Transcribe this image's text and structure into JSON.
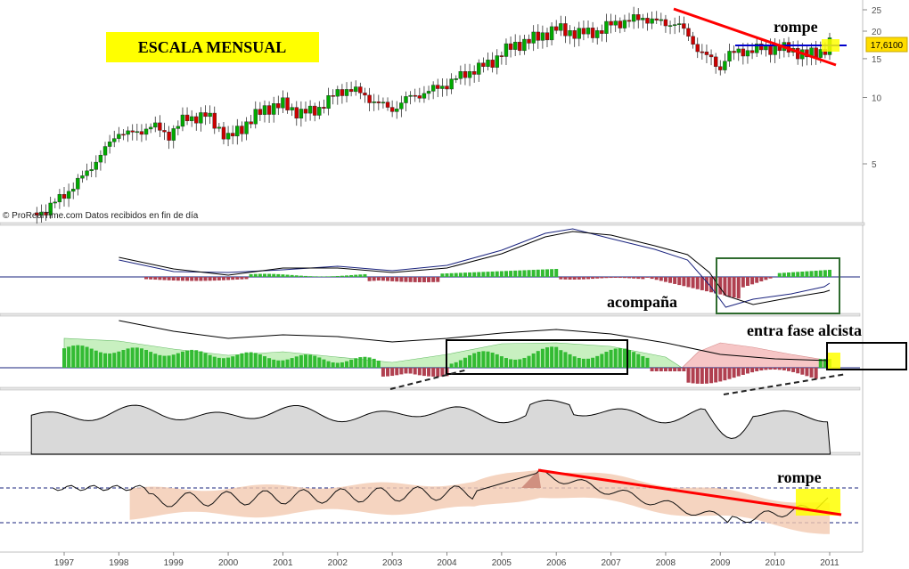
{
  "title_banner": "ESCALA MENSUAL",
  "credit": "© ProRealTime.com  Datos recibidos en fin de día",
  "current_price": "17,6100",
  "annotations": {
    "rompe_top": "rompe",
    "acompana": "acompaña",
    "entra_fase": "entra fase alcista",
    "rompe_bottom": "rompe"
  },
  "colors": {
    "up_candle": "#00aa00",
    "down_candle": "#cc0000",
    "trend_red": "#ff0000",
    "level_blue": "#0000cc",
    "highlight_yellow": "#ffff00",
    "macd_green": "#33bb33",
    "macd_red": "#b04050",
    "panel_line": "#1a237e",
    "box_green": "#2e6b2e",
    "fill_gray": "#d9d9d9",
    "band_fill": "#f2c9b0"
  },
  "chart_data": {
    "type": "line",
    "x_ticks": [
      "1997",
      "1998",
      "1999",
      "2000",
      "2001",
      "2002",
      "2003",
      "2004",
      "2005",
      "2006",
      "2007",
      "2008",
      "2009",
      "2010",
      "2011"
    ],
    "price_axis": {
      "scale": "log",
      "ticks": [
        "25",
        "20",
        "15",
        "10",
        "5"
      ],
      "ylim": [
        2.5,
        27
      ]
    },
    "price_series": {
      "x": [
        1996.6,
        1997.0,
        1997.4,
        1997.8,
        1998.0,
        1998.3,
        1998.6,
        1998.9,
        1999.2,
        1999.6,
        2000.0,
        2000.3,
        2000.7,
        2001.0,
        2001.3,
        2001.6,
        2002.0,
        2002.2,
        2002.4,
        2002.7,
        2003.0,
        2003.3,
        2003.6,
        2004.0,
        2004.2,
        2004.5,
        2004.8,
        2005.0,
        2005.3,
        2005.6,
        2005.8,
        2006.0,
        2006.4,
        2006.8,
        2007.0,
        2007.3,
        2007.6,
        2008.0,
        2008.2,
        2008.4,
        2008.6,
        2008.8,
        2009.0,
        2009.1,
        2009.3,
        2009.6,
        2010.0,
        2010.3,
        2010.6,
        2010.9,
        2011.0
      ],
      "close": [
        3.0,
        3.6,
        4.5,
        6.0,
        7.0,
        6.8,
        7.5,
        6.7,
        8.0,
        8.3,
        6.5,
        7.5,
        9.0,
        9.3,
        8.5,
        8.7,
        10.5,
        11.0,
        10.5,
        9.5,
        8.8,
        10.0,
        10.5,
        11.5,
        12.3,
        13.4,
        14.3,
        16.0,
        17.5,
        18.5,
        19.5,
        20.5,
        19.5,
        20.0,
        21.5,
        22.3,
        23.0,
        21.5,
        22.0,
        19.0,
        16.5,
        15.0,
        13.5,
        15.5,
        16.0,
        16.5,
        16.8,
        16.5,
        15.5,
        16.5,
        17.61
      ]
    },
    "trendlines": [
      {
        "name": "rompe",
        "panel": "price",
        "from": [
          2008.3,
          24.0
        ],
        "to": [
          2011.1,
          14.5
        ],
        "color": "red"
      },
      {
        "panel": "price",
        "level": 17.6,
        "from_x": 2009.3,
        "to_x": 2011.3,
        "color": "blue"
      }
    ],
    "panels": [
      {
        "id": "macd",
        "description": "MACD lines with histogram"
      },
      {
        "id": "oscillator",
        "description": "trend histogram with green/red shaded bands"
      },
      {
        "id": "filled_indicator",
        "description": "gray filled oscillator"
      },
      {
        "id": "band_indicator",
        "description": "line inside shaded band with resistance trendline"
      }
    ]
  }
}
